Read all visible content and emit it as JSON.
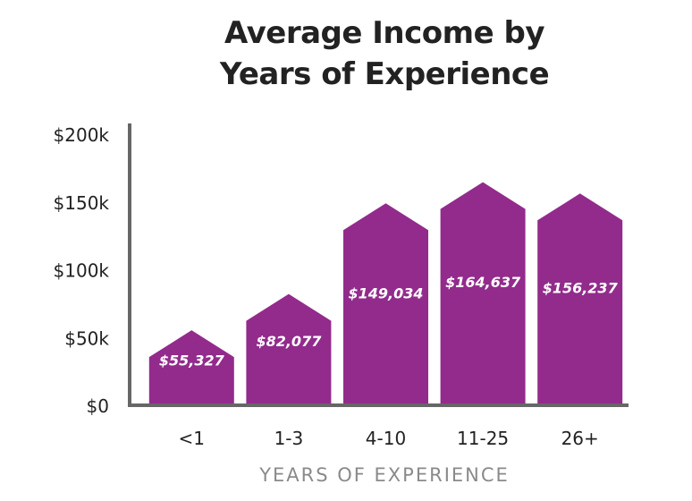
{
  "chart_data": {
    "type": "bar",
    "title_lines": [
      "Average Income by",
      "Years of Experience"
    ],
    "xlabel": "YEARS OF EXPERIENCE",
    "ylabel": "",
    "categories": [
      "<1",
      "1-3",
      "4-10",
      "11-25",
      "26+"
    ],
    "values": [
      55327,
      82077,
      149034,
      164637,
      156237
    ],
    "value_labels": [
      "$55,327",
      "$82,077",
      "$149,034",
      "$164,637",
      "$156,237"
    ],
    "ylim": [
      0,
      200000
    ],
    "yticks": [
      0,
      50000,
      100000,
      150000,
      200000
    ],
    "ytick_labels": [
      "$0",
      "$50k",
      "$100k",
      "$150k",
      "$200k"
    ],
    "grid": false,
    "bar_color": "#922b8c",
    "axis_color": "#666666"
  }
}
